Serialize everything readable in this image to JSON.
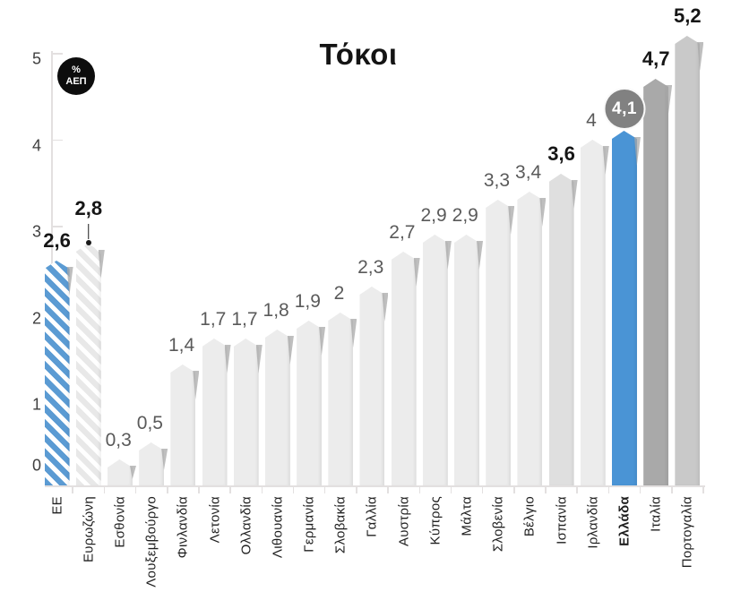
{
  "title": "Τόκοι",
  "unit_badge": {
    "percent": "%",
    "unit": "ΑΕΠ"
  },
  "y_axis": {
    "tick_labels": [
      "0",
      "1",
      "2",
      "3",
      "4",
      "5"
    ]
  },
  "colors": {
    "accent_blue": "#4a94d5",
    "hatch_blue": "#5b9bd3",
    "bar_default": "#ececec",
    "bar_spain": "#dfdfdf",
    "bar_italy": "#a9a9a9",
    "bar_portugal": "#c9c9c9",
    "hatch_gray": "#e8e8e8",
    "badge_circle": "#818181",
    "unit_badge_bg": "#0d0d0d",
    "value_gray": "#5a5a5a",
    "value_black": "#161616",
    "axis": "#e3e0e0"
  },
  "chart_data": {
    "type": "bar",
    "title": "Τόκοι",
    "xlabel": "",
    "ylabel": "% ΑΕΠ",
    "ylim": [
      0,
      5.5
    ],
    "grid": false,
    "legend": "none",
    "categories": [
      "ΕΕ",
      "Ευρωζώνη",
      "Εσθονία",
      "Λουξεμβούργο",
      "Φινλανδία",
      "Λετονία",
      "Ολλανδία",
      "Λιθουανία",
      "Γερμανία",
      "Σλοβακία",
      "Γαλλία",
      "Αυστρία",
      "Κύπρος",
      "Μάλτα",
      "Σλοβενία",
      "Βέλγιο",
      "Ισπανία",
      "Ιρλανδία",
      "Ελλάδα",
      "Ιταλία",
      "Πορτογαλία"
    ],
    "values": [
      2.6,
      2.8,
      0.3,
      0.5,
      1.4,
      1.7,
      1.7,
      1.8,
      1.9,
      2,
      2.3,
      2.7,
      2.9,
      2.9,
      3.3,
      3.4,
      3.6,
      4,
      4.1,
      4.7,
      5.2
    ],
    "bars": [
      {
        "category": "ΕΕ",
        "value": 2.6,
        "display": "2,6",
        "fill": "hatch-blue",
        "value_style": "bold",
        "category_bold": false
      },
      {
        "category": "Ευρωζώνη",
        "value": 2.8,
        "display": "2,8",
        "fill": "hatch-gray",
        "value_style": "bold-leader",
        "category_bold": false
      },
      {
        "category": "Εσθονία",
        "value": 0.3,
        "display": "0,3",
        "fill": "light",
        "value_style": "gray",
        "category_bold": false
      },
      {
        "category": "Λουξεμβούργο",
        "value": 0.5,
        "display": "0,5",
        "fill": "light",
        "value_style": "gray",
        "category_bold": false
      },
      {
        "category": "Φινλανδία",
        "value": 1.4,
        "display": "1,4",
        "fill": "light",
        "value_style": "gray",
        "category_bold": false
      },
      {
        "category": "Λετονία",
        "value": 1.7,
        "display": "1,7",
        "fill": "light",
        "value_style": "gray",
        "category_bold": false
      },
      {
        "category": "Ολλανδία",
        "value": 1.7,
        "display": "1,7",
        "fill": "light",
        "value_style": "gray",
        "category_bold": false
      },
      {
        "category": "Λιθουανία",
        "value": 1.8,
        "display": "1,8",
        "fill": "light",
        "value_style": "gray",
        "category_bold": false
      },
      {
        "category": "Γερμανία",
        "value": 1.9,
        "display": "1,9",
        "fill": "light",
        "value_style": "gray",
        "category_bold": false
      },
      {
        "category": "Σλοβακία",
        "value": 2,
        "display": "2",
        "fill": "light",
        "value_style": "gray",
        "category_bold": false
      },
      {
        "category": "Γαλλία",
        "value": 2.3,
        "display": "2,3",
        "fill": "light",
        "value_style": "gray",
        "category_bold": false
      },
      {
        "category": "Αυστρία",
        "value": 2.7,
        "display": "2,7",
        "fill": "light",
        "value_style": "gray",
        "category_bold": false
      },
      {
        "category": "Κύπρος",
        "value": 2.9,
        "display": "2,9",
        "fill": "light",
        "value_style": "gray",
        "category_bold": false
      },
      {
        "category": "Μάλτα",
        "value": 2.9,
        "display": "2,9",
        "fill": "light",
        "value_style": "gray",
        "category_bold": false
      },
      {
        "category": "Σλοβενία",
        "value": 3.3,
        "display": "3,3",
        "fill": "light",
        "value_style": "gray",
        "category_bold": false
      },
      {
        "category": "Βέλγιο",
        "value": 3.4,
        "display": "3,4",
        "fill": "light",
        "value_style": "gray",
        "category_bold": false
      },
      {
        "category": "Ισπανία",
        "value": 3.6,
        "display": "3,6",
        "fill": "medium",
        "value_style": "bold",
        "category_bold": false
      },
      {
        "category": "Ιρλανδία",
        "value": 4,
        "display": "4",
        "fill": "light",
        "value_style": "gray",
        "category_bold": false
      },
      {
        "category": "Ελλάδα",
        "value": 4.1,
        "display": "4,1",
        "fill": "solid-blue",
        "value_style": "badge",
        "category_bold": true
      },
      {
        "category": "Ιταλία",
        "value": 4.7,
        "display": "4,7",
        "fill": "dark",
        "value_style": "bold",
        "category_bold": false
      },
      {
        "category": "Πορτογαλία",
        "value": 5.2,
        "display": "5,2",
        "fill": "portugal",
        "value_style": "bold",
        "category_bold": false
      }
    ]
  }
}
